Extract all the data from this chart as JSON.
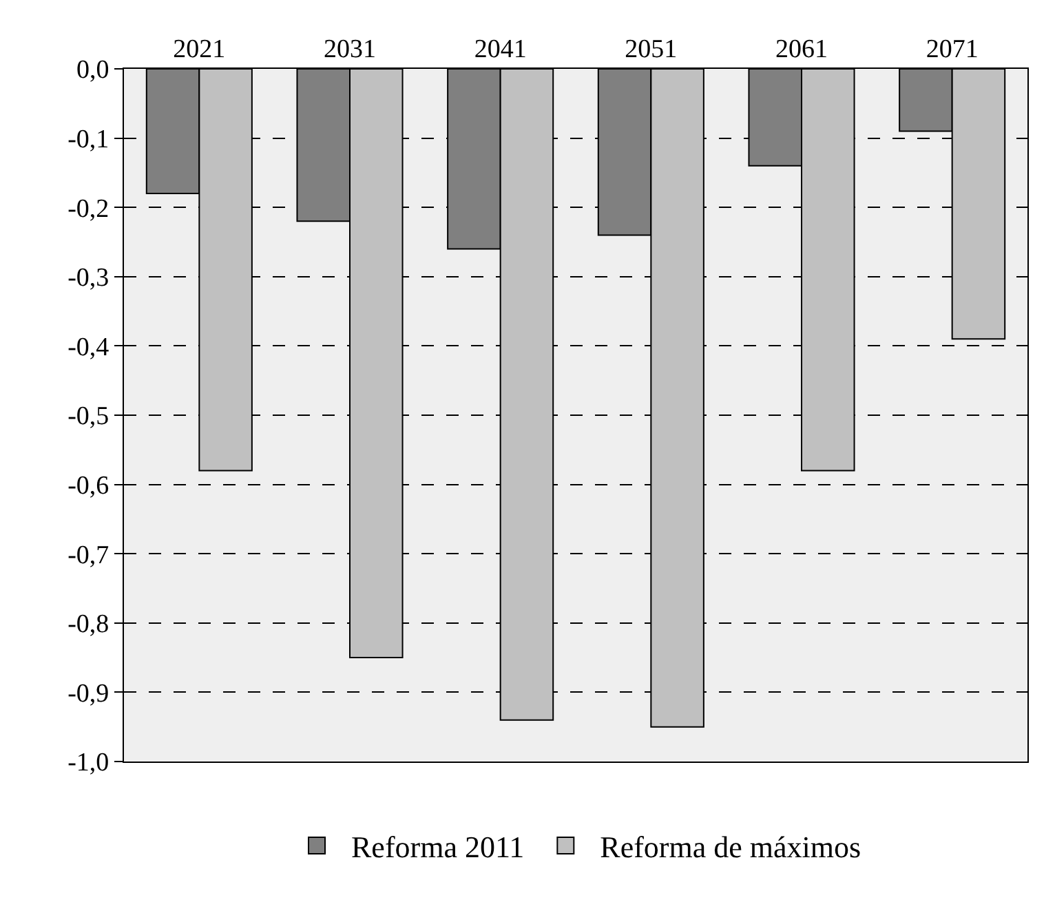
{
  "chart_data": {
    "type": "bar",
    "categories": [
      "2021",
      "2031",
      "2041",
      "2051",
      "2061",
      "2071"
    ],
    "series": [
      {
        "name": "Reforma 2011",
        "color": "#808080",
        "values": [
          -0.18,
          -0.22,
          -0.26,
          -0.24,
          -0.14,
          -0.09
        ]
      },
      {
        "name": "Reforma de máximos",
        "color": "#c0c0c0",
        "values": [
          -0.58,
          -0.85,
          -0.94,
          -0.95,
          -0.58,
          -0.39
        ]
      }
    ],
    "ylim": [
      -1.0,
      0.0
    ],
    "yticks": [
      {
        "value": 0.0,
        "label": "0,0"
      },
      {
        "value": -0.1,
        "label": "-0,1"
      },
      {
        "value": -0.2,
        "label": "-0,2"
      },
      {
        "value": -0.3,
        "label": "-0,3"
      },
      {
        "value": -0.4,
        "label": "-0,4"
      },
      {
        "value": -0.5,
        "label": "-0,5"
      },
      {
        "value": -0.6,
        "label": "-0,6"
      },
      {
        "value": -0.7,
        "label": "-0,7"
      },
      {
        "value": -0.8,
        "label": "-0,8"
      },
      {
        "value": -0.9,
        "label": "-0,9"
      },
      {
        "value": -1.0,
        "label": "-1,0"
      }
    ],
    "grid": "y",
    "line_style": "dashed",
    "legend": "bottom"
  }
}
